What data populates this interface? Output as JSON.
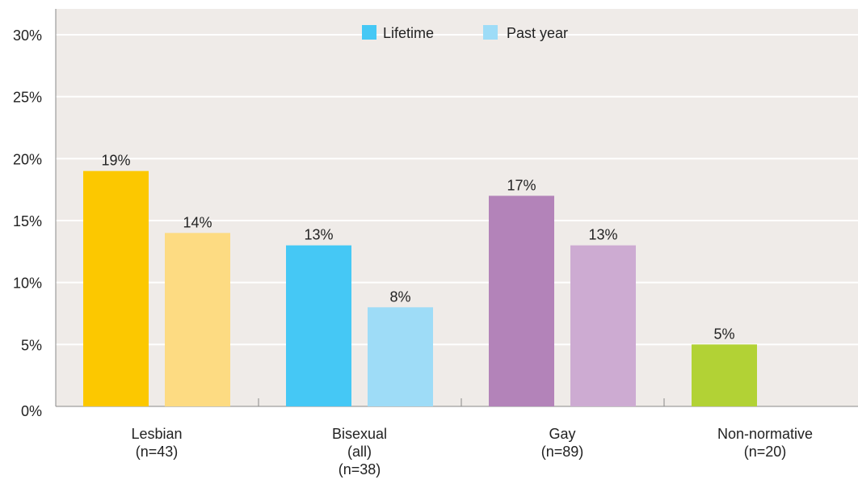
{
  "chart_data": {
    "type": "bar",
    "title": "",
    "xlabel": "",
    "ylabel": "",
    "ylim": [
      0,
      30
    ],
    "yticks": [
      0,
      5,
      10,
      15,
      20,
      25,
      30
    ],
    "ytick_labels": [
      "0%",
      "5%",
      "10%",
      "15%",
      "20%",
      "25%",
      "30%"
    ],
    "grid": true,
    "legend_position": "top-center",
    "legend": [
      {
        "label": "Lifetime",
        "color": "#45c8f5"
      },
      {
        "label": "Past year",
        "color": "#9edcf7"
      }
    ],
    "categories": [
      {
        "label_lines": [
          "Lesbian",
          "(n=43)"
        ]
      },
      {
        "label_lines": [
          "Bisexual",
          "(all)",
          "(n=38)"
        ]
      },
      {
        "label_lines": [
          "Gay",
          "(n=89)"
        ]
      },
      {
        "label_lines": [
          "Non-normative",
          "(n=20)"
        ]
      }
    ],
    "series": [
      {
        "name": "Lifetime",
        "values": [
          19,
          13,
          17,
          5
        ],
        "colors": [
          "#fcc800",
          "#45c8f5",
          "#b383b9",
          "#b2d235"
        ]
      },
      {
        "name": "Past year",
        "values": [
          14,
          8,
          13,
          null
        ],
        "colors": [
          "#fddb82",
          "#9edcf7",
          "#cdabd2",
          "#d8e89a"
        ]
      }
    ],
    "data_labels": [
      [
        "19%",
        "13%",
        "17%",
        "5%"
      ],
      [
        "14%",
        "8%",
        "13%",
        ""
      ]
    ],
    "colors": {
      "plot_background": "#efebe8",
      "gridline": "#ffffff",
      "axis": "#888888",
      "text": "#222222"
    }
  }
}
